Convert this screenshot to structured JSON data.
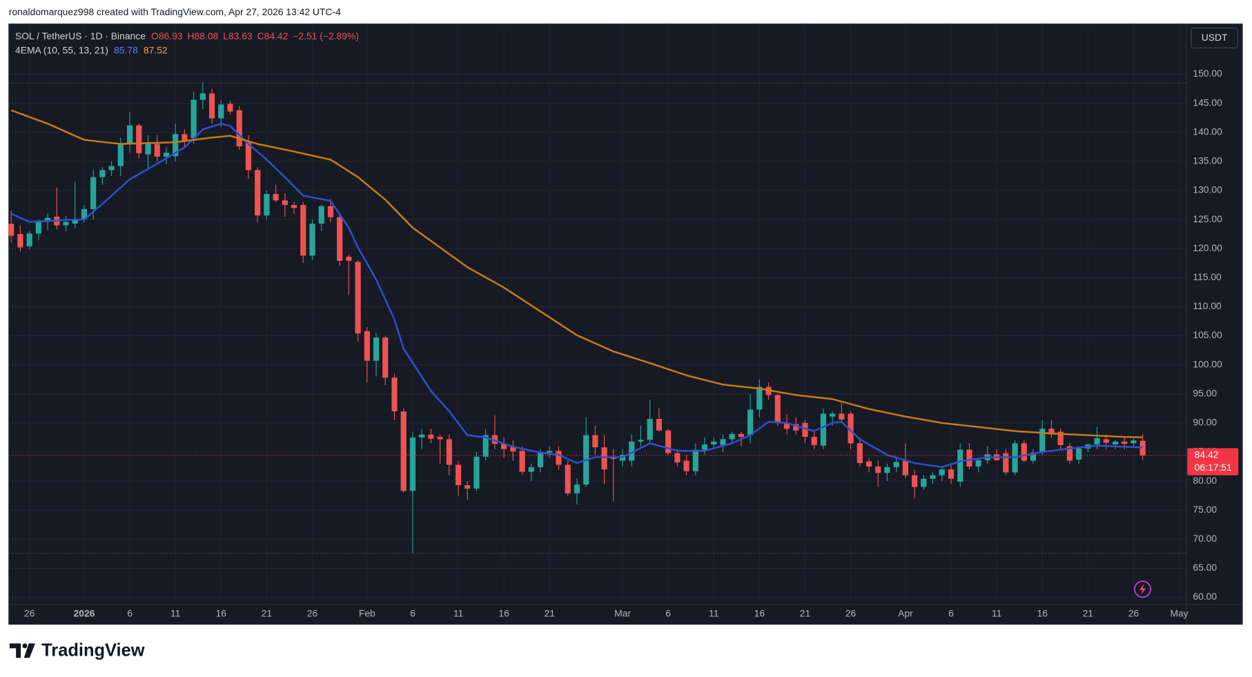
{
  "header": {
    "credit": "ronaldomarquez998 created with TradingView.com, Apr 27, 2026 13:42 UTC-4"
  },
  "footer": {
    "brand": "TradingView"
  },
  "chart_data": {
    "type": "candlestick",
    "symbol": "SOL / TetherUS · 1D · Binance",
    "ohlc_text": [
      "O86.93",
      "H88.08",
      "L83.63",
      "C84.42"
    ],
    "change_text": "−2.51 (−2.89%)",
    "currency": "USDT",
    "up_color": "#26a69a",
    "down_color": "#ef5350",
    "grid": true,
    "xlim": [
      -0.26,
      128.8
    ],
    "ylim": [
      58.79,
      158.65
    ],
    "xticks": [
      {
        "value": 2,
        "label": "26"
      },
      {
        "value": 8,
        "label": "2026"
      },
      {
        "value": 13,
        "label": "6"
      },
      {
        "value": 18,
        "label": "11"
      },
      {
        "value": 23,
        "label": "16"
      },
      {
        "value": 28,
        "label": "21"
      },
      {
        "value": 33,
        "label": "26"
      },
      {
        "value": 39,
        "label": "Feb"
      },
      {
        "value": 44,
        "label": "6"
      },
      {
        "value": 49,
        "label": "11"
      },
      {
        "value": 54,
        "label": "16"
      },
      {
        "value": 59,
        "label": "21"
      },
      {
        "value": 67,
        "label": "Mar"
      },
      {
        "value": 72,
        "label": "6"
      },
      {
        "value": 77,
        "label": "11"
      },
      {
        "value": 82,
        "label": "16"
      },
      {
        "value": 87,
        "label": "21"
      },
      {
        "value": 92,
        "label": "26"
      },
      {
        "value": 98,
        "label": "Apr"
      },
      {
        "value": 103,
        "label": "6"
      },
      {
        "value": 108,
        "label": "11"
      },
      {
        "value": 113,
        "label": "16"
      },
      {
        "value": 118,
        "label": "21"
      },
      {
        "value": 123,
        "label": "26"
      },
      {
        "value": 128,
        "label": "May"
      }
    ],
    "yticks": [
      {
        "value": 60,
        "label": "60.00"
      },
      {
        "value": 65,
        "label": "65.00"
      },
      {
        "value": 70,
        "label": "70.00"
      },
      {
        "value": 75,
        "label": "75.00"
      },
      {
        "value": 80,
        "label": "80.00"
      },
      {
        "value": 85,
        "label": "85.00"
      },
      {
        "value": 90,
        "label": "90.00"
      },
      {
        "value": 95,
        "label": "95.00"
      },
      {
        "value": 100,
        "label": "100.00"
      },
      {
        "value": 105,
        "label": "105.00"
      },
      {
        "value": 110,
        "label": "110.00"
      },
      {
        "value": 115,
        "label": "115.00"
      },
      {
        "value": 120,
        "label": "120.00"
      },
      {
        "value": 125,
        "label": "125.00"
      },
      {
        "value": 130,
        "label": "130.00"
      },
      {
        "value": 135,
        "label": "135.00"
      },
      {
        "value": 140,
        "label": "140.00"
      },
      {
        "value": 145,
        "label": "145.00"
      },
      {
        "value": 150,
        "label": "150.00"
      }
    ],
    "open": [
      124.3,
      122.5,
      120.4,
      122.6,
      124.8,
      125.5,
      124.0,
      124.3,
      125.0,
      126.8,
      132.3,
      133.5,
      134.2,
      138.0,
      141.2,
      136.2,
      138.0,
      135.8,
      135.9,
      139.7,
      139.0,
      145.6,
      146.7,
      142.4,
      144.9,
      143.8,
      138.3,
      133.5,
      125.7,
      129.4,
      128.3,
      127.5,
      127.5,
      118.8,
      124.3,
      127.3,
      125.4,
      118.6,
      117.7,
      105.8,
      100.7,
      104.7,
      97.8,
      92.0,
      78.3,
      87.5,
      88.0,
      87.6,
      87.2,
      82.8,
      79.3,
      78.7,
      84.2,
      87.9,
      86.4,
      86.0,
      85.2,
      81.6,
      82.4,
      84.9,
      85.2,
      82.8,
      77.9,
      79.4,
      87.9,
      85.8,
      84.2,
      83.5,
      83.5,
      86.8,
      87.1,
      90.7,
      88.7,
      84.8,
      83.5,
      81.7,
      85.4,
      86.3,
      86.2,
      87.2,
      88.1,
      87.9,
      92.3,
      96.2,
      94.8,
      90.0,
      89.8,
      90.0,
      87.6,
      86.1,
      91.1,
      91.6,
      91.6,
      86.5,
      83.4,
      82.5,
      81.4,
      82.4,
      83.5,
      81.0,
      79.0,
      80.4,
      81.0,
      82.0,
      79.9,
      85.4,
      82.5,
      83.6,
      84.6,
      84.8,
      81.5,
      86.5,
      83.5,
      84.9,
      89.0,
      88.5,
      86.0,
      83.7,
      85.6,
      86.3,
      87.2,
      86.3,
      86.8,
      86.5,
      86.93
    ],
    "high": [
      126.5,
      124.0,
      123.0,
      125.0,
      126.0,
      130.5,
      125.6,
      131.5,
      127.5,
      133.5,
      134.0,
      135.0,
      139.0,
      143.5,
      141.5,
      139.5,
      139.5,
      137.5,
      141.5,
      140.5,
      147.0,
      148.5,
      147.5,
      145.5,
      145.4,
      144.5,
      139.5,
      134.0,
      130.0,
      131.0,
      129.5,
      128.0,
      128.0,
      125.0,
      127.5,
      128.5,
      126.0,
      119.0,
      118.0,
      106.5,
      105.5,
      105.0,
      98.5,
      92.5,
      88.5,
      89.0,
      89.0,
      88.0,
      88.0,
      83.5,
      80.0,
      85.0,
      89.0,
      91.3,
      87.5,
      87.0,
      86.0,
      83.0,
      85.5,
      86.0,
      86.0,
      83.5,
      80.5,
      91.0,
      89.5,
      88.0,
      85.5,
      85.5,
      88.0,
      89.5,
      94.0,
      92.5,
      89.0,
      85.5,
      84.5,
      86.5,
      87.5,
      87.5,
      88.0,
      88.5,
      88.5,
      95.0,
      97.5,
      97.0,
      95.0,
      91.5,
      91.0,
      90.5,
      88.5,
      92.5,
      92.0,
      93.5,
      92.0,
      87.5,
      84.0,
      83.5,
      83.0,
      84.0,
      86.5,
      82.0,
      81.0,
      81.5,
      82.5,
      83.0,
      86.5,
      86.5,
      84.0,
      86.0,
      85.5,
      85.5,
      87.0,
      87.0,
      85.5,
      90.5,
      90.5,
      89.0,
      86.5,
      86.0,
      86.5,
      89.3,
      88.0,
      87.0,
      87.5,
      87.5,
      88.08
    ],
    "low": [
      121.0,
      119.5,
      119.8,
      121.5,
      123.2,
      123.3,
      123.0,
      123.5,
      124.5,
      125.0,
      131.0,
      132.5,
      132.5,
      136.5,
      135.5,
      133.5,
      135.0,
      134.5,
      135.0,
      137.5,
      138.0,
      144.0,
      141.5,
      141.0,
      143.0,
      137.0,
      132.0,
      124.5,
      125.0,
      128.0,
      125.5,
      126.0,
      117.5,
      118.0,
      123.0,
      124.5,
      117.0,
      112.0,
      104.0,
      97.0,
      98.0,
      96.5,
      90.5,
      78.0,
      67.6,
      85.5,
      86.5,
      83.0,
      81.0,
      77.5,
      76.8,
      78.3,
      83.5,
      85.5,
      84.0,
      83.5,
      81.0,
      80.0,
      81.5,
      84.0,
      82.0,
      77.5,
      76.0,
      79.0,
      84.5,
      79.5,
      76.5,
      82.5,
      82.5,
      86.0,
      86.5,
      88.5,
      84.5,
      82.5,
      81.0,
      81.0,
      84.5,
      85.5,
      85.0,
      86.5,
      86.0,
      86.5,
      91.0,
      94.0,
      89.5,
      88.0,
      88.0,
      86.5,
      85.5,
      85.5,
      89.5,
      90.0,
      85.5,
      82.5,
      81.5,
      79.0,
      80.0,
      81.5,
      80.5,
      77.0,
      78.5,
      79.5,
      80.0,
      79.5,
      79.0,
      82.0,
      81.5,
      83.0,
      83.5,
      81.0,
      81.0,
      83.3,
      83.0,
      84.5,
      87.5,
      85.5,
      83.0,
      83.0,
      85.0,
      85.5,
      85.5,
      85.5,
      85.5,
      85.8,
      83.63
    ],
    "close": [
      122.2,
      120.2,
      122.6,
      124.8,
      125.3,
      124.0,
      124.6,
      125.0,
      126.8,
      132.3,
      133.5,
      134.2,
      138.0,
      141.2,
      136.4,
      138.0,
      135.8,
      136.5,
      139.7,
      138.5,
      145.6,
      146.7,
      142.4,
      144.8,
      143.6,
      137.6,
      133.5,
      125.7,
      129.4,
      128.3,
      127.5,
      127.0,
      118.8,
      124.3,
      127.3,
      125.4,
      117.9,
      117.9,
      105.4,
      100.7,
      104.7,
      97.8,
      92.0,
      78.3,
      87.5,
      88.0,
      87.3,
      87.2,
      82.8,
      79.3,
      78.7,
      84.2,
      87.9,
      86.4,
      85.5,
      85.1,
      81.6,
      82.4,
      84.9,
      85.2,
      82.8,
      77.9,
      79.4,
      87.9,
      85.8,
      82.0,
      83.8,
      84.5,
      86.8,
      87.1,
      90.7,
      88.7,
      84.8,
      83.2,
      81.7,
      85.4,
      86.3,
      86.8,
      87.2,
      88.1,
      87.6,
      92.3,
      96.2,
      94.8,
      90.0,
      89.0,
      88.7,
      87.6,
      86.2,
      91.6,
      91.6,
      90.6,
      86.5,
      83.1,
      82.5,
      81.4,
      82.4,
      83.3,
      81.0,
      79.0,
      80.4,
      81.0,
      82.0,
      80.4,
      85.4,
      82.5,
      83.6,
      84.6,
      83.6,
      81.5,
      86.5,
      83.5,
      84.9,
      89.0,
      88.0,
      86.2,
      83.5,
      85.6,
      86.3,
      87.4,
      86.6,
      86.8,
      86.4,
      87.0,
      84.42
    ],
    "last_price": 84.42,
    "countdown": "06:17:51",
    "price_line_color": "#f23645",
    "indicator": {
      "label": "4EMA (10, 55, 13, 21)",
      "lines": [
        {
          "color": "#2e4fd1",
          "last": 85.78,
          "x": [
            0,
            2,
            7,
            8,
            10,
            13,
            16,
            19,
            21,
            23,
            24,
            26,
            28,
            30,
            32,
            35,
            37,
            38,
            40,
            42,
            43,
            46,
            48,
            50,
            52,
            55,
            58,
            60,
            62,
            64,
            67,
            70,
            73,
            76,
            79,
            81,
            83,
            85,
            88,
            90,
            91,
            93,
            96,
            99,
            102,
            104,
            107,
            110,
            113,
            116,
            119,
            122,
            124
          ],
          "values": [
            126.0,
            124.6,
            125.0,
            125.0,
            127.7,
            131.9,
            134.6,
            137.4,
            140.5,
            141.5,
            141.1,
            138.0,
            135.3,
            132.3,
            129.1,
            128.2,
            123.6,
            120.2,
            114.7,
            107.8,
            102.8,
            95.5,
            92.0,
            87.9,
            87.5,
            85.9,
            84.9,
            84.5,
            83.1,
            84.1,
            84.1,
            86.5,
            85.2,
            85.2,
            86.5,
            87.9,
            90.2,
            90.0,
            88.6,
            90.0,
            90.2,
            87.2,
            84.5,
            83.1,
            82.4,
            83.4,
            84.1,
            84.1,
            85.0,
            85.6,
            86.1,
            85.9,
            85.78
          ]
        },
        {
          "color": "#c67a14",
          "last": 87.52,
          "x": [
            0,
            4,
            8,
            12,
            18,
            22,
            24,
            27,
            31,
            35,
            38,
            41,
            44,
            47,
            50,
            54,
            58,
            62,
            66,
            70,
            74,
            78,
            82,
            86,
            90,
            94,
            98,
            102,
            106,
            110,
            114,
            118,
            122,
            124
          ],
          "values": [
            143.8,
            141.5,
            138.7,
            138.0,
            138.3,
            139.1,
            139.4,
            138.0,
            136.7,
            135.3,
            132.3,
            128.4,
            123.6,
            120.2,
            116.8,
            113.3,
            109.2,
            105.1,
            102.3,
            100.3,
            98.2,
            96.6,
            95.9,
            94.8,
            94.1,
            92.4,
            91.1,
            90.0,
            89.3,
            88.6,
            88.2,
            87.9,
            87.6,
            87.52
          ]
        }
      ]
    }
  }
}
